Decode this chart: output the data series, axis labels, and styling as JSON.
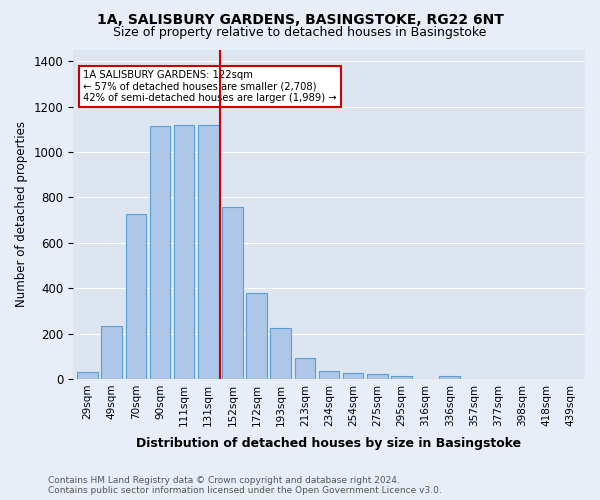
{
  "title1": "1A, SALISBURY GARDENS, BASINGSTOKE, RG22 6NT",
  "title2": "Size of property relative to detached houses in Basingstoke",
  "xlabel": "Distribution of detached houses by size in Basingstoke",
  "ylabel": "Number of detached properties",
  "footnote": "Contains HM Land Registry data © Crown copyright and database right 2024.\nContains public sector information licensed under the Open Government Licence v3.0.",
  "bar_labels": [
    "29sqm",
    "49sqm",
    "70sqm",
    "90sqm",
    "111sqm",
    "131sqm",
    "152sqm",
    "172sqm",
    "193sqm",
    "213sqm",
    "234sqm",
    "254sqm",
    "275sqm",
    "295sqm",
    "316sqm",
    "336sqm",
    "357sqm",
    "377sqm",
    "398sqm",
    "418sqm",
    "439sqm"
  ],
  "bar_values": [
    30,
    235,
    725,
    1115,
    1120,
    1120,
    760,
    380,
    225,
    90,
    35,
    25,
    20,
    13,
    0,
    13,
    0,
    0,
    0,
    0,
    0
  ],
  "bar_color": "#aec6e8",
  "bar_edge_color": "#5a9fd4",
  "vline_x": 5.5,
  "vline_color": "#cc0000",
  "annotation_text": "1A SALISBURY GARDENS: 122sqm\n← 57% of detached houses are smaller (2,708)\n42% of semi-detached houses are larger (1,989) →",
  "annotation_box_color": "#ffffff",
  "annotation_box_edge": "#cc0000",
  "ylim": [
    0,
    1450
  ],
  "yticks": [
    0,
    200,
    400,
    600,
    800,
    1000,
    1200,
    1400
  ],
  "bg_color": "#e8eef7",
  "plot_bg_color": "#dde6f0"
}
